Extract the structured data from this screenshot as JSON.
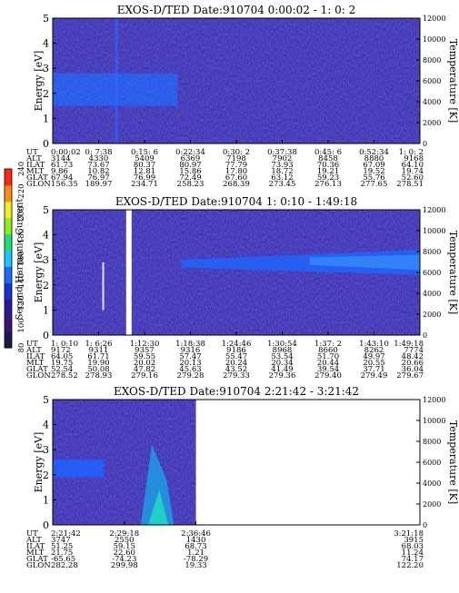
{
  "colorbar": {
    "label": "Second Harmonic Current",
    "ticks": [
      "80",
      "100",
      "120",
      "140",
      "160",
      "180",
      "200",
      "220",
      "240"
    ],
    "colors": [
      "#1a1a4a",
      "#3a1478",
      "#2a1a9a",
      "#1830d8",
      "#1a6cff",
      "#19c8ff",
      "#1ee078",
      "#8cf01e",
      "#f0f01e",
      "#ff8c14",
      "#ff2814"
    ]
  },
  "chart_data": [
    {
      "type": "heatmap",
      "title": "EXOS-D/TED   Date:910704   0:00:02 - 1: 0: 2",
      "ylabel": "Energy [eV]",
      "y2label": "Temperature [K]",
      "ylim": [
        0,
        5
      ],
      "y2lim": [
        0,
        12000
      ],
      "yticks": [
        "0",
        "1",
        "2",
        "3",
        "4",
        "5"
      ],
      "y2ticks": [
        "0",
        "2000",
        "4000",
        "6000",
        "8000",
        "10000",
        "12000"
      ],
      "data_extent": 1.0,
      "rows": [
        {
          "label": "UT",
          "values": [
            "0:00:02",
            "0: 7:38",
            "0:15: 6",
            "0:22:34",
            "0:30: 2",
            "0:37:38",
            "0:45: 6",
            "0:52:34",
            "1: 0: 2"
          ]
        },
        {
          "label": "ALT",
          "values": [
            "3144",
            "4330",
            "5409",
            "6369",
            "7198",
            "7902",
            "8458",
            "8880",
            "9168"
          ]
        },
        {
          "label": "ILAT",
          "values": [
            "61.73",
            "73.67",
            "80.37",
            "80.97",
            "77.79",
            "73.93",
            "70.36",
            "67.09",
            "64.10"
          ]
        },
        {
          "label": "MLT",
          "values": [
            "9.86",
            "10.82",
            "12.81",
            "15.86",
            "17.80",
            "18.72",
            "19.21",
            "19.52",
            "19.74"
          ]
        },
        {
          "label": "GLAT",
          "values": [
            "67.94",
            "76.97",
            "76.99",
            "72.49",
            "67.60",
            "63.12",
            "59.23",
            "55.76",
            "52.60"
          ]
        },
        {
          "label": "GLON",
          "values": [
            "156.35",
            "189.97",
            "234.71",
            "258.23",
            "268.39",
            "273.45",
            "276.13",
            "277.65",
            "278.51"
          ]
        }
      ]
    },
    {
      "type": "heatmap",
      "title": "EXOS-D/TED   Date:910704   1: 0:10 - 1:49:18",
      "ylabel": "Energy [eV]",
      "y2label": "Temperature [K]",
      "ylim": [
        0,
        5
      ],
      "y2lim": [
        0,
        12000
      ],
      "yticks": [
        "0",
        "1",
        "2",
        "3",
        "4",
        "5"
      ],
      "y2ticks": [
        "0",
        "2000",
        "4000",
        "6000",
        "8000",
        "10000",
        "12000"
      ],
      "data_extent": 1.0,
      "rows": [
        {
          "label": "UT",
          "values": [
            "1: 0:10",
            "1: 6:26",
            "1:12:30",
            "1:18:38",
            "1:24:46",
            "1:30:54",
            "1:37: 2",
            "1:43:10",
            "1:49:18"
          ]
        },
        {
          "label": "ALT",
          "values": [
            "9172",
            "9311",
            "9357",
            "9316",
            "9186",
            "8968",
            "8660",
            "8262",
            "7774"
          ]
        },
        {
          "label": "ILAT",
          "values": [
            "64.05",
            "61.71",
            "59.55",
            "57.47",
            "55.47",
            "53.54",
            "51.70",
            "49.97",
            "48.42"
          ]
        },
        {
          "label": "MLT",
          "values": [
            "19.75",
            "19.90",
            "20.02",
            "20.13",
            "20.24",
            "20.34",
            "20.44",
            "20.55",
            "20.66"
          ]
        },
        {
          "label": "GLAT",
          "values": [
            "52.54",
            "50.08",
            "47.82",
            "45.63",
            "43.52",
            "41.49",
            "39.54",
            "37.71",
            "36.04"
          ]
        },
        {
          "label": "GLON",
          "values": [
            "278.52",
            "278.93",
            "279.16",
            "279.28",
            "279.33",
            "279.36",
            "279.40",
            "279.49",
            "279.67"
          ]
        }
      ]
    },
    {
      "type": "heatmap",
      "title": "EXOS-D/TED   Date:910704   2:21:42 - 3:21:42",
      "ylabel": "Energy [eV]",
      "y2label": "Temperature [K]",
      "ylim": [
        0,
        5
      ],
      "y2lim": [
        0,
        12000
      ],
      "yticks": [
        "0",
        "1",
        "2",
        "3",
        "4",
        "5"
      ],
      "y2ticks": [
        "0",
        "2000",
        "4000",
        "6000",
        "8000",
        "10000",
        "12000"
      ],
      "data_extent": 0.39,
      "rows": [
        {
          "label": "UT",
          "values": [
            "2:21:42",
            "2:29:18",
            "2:36:46",
            "3:21:18"
          ]
        },
        {
          "label": "ALT",
          "values": [
            "3747",
            "2550",
            "1430",
            "3915"
          ]
        },
        {
          "label": "ILAT",
          "values": [
            "51.25",
            "59.15",
            "68.73",
            "68.03"
          ]
        },
        {
          "label": "MLT",
          "values": [
            "21.75",
            "22.60",
            "1.21",
            "11.24"
          ]
        },
        {
          "label": "GLAT",
          "values": [
            "-65.65",
            "-74.23",
            "-78.29",
            "74.17"
          ]
        },
        {
          "label": "GLON",
          "values": [
            "282.28",
            "299.98",
            "19.33",
            "122.20"
          ]
        }
      ]
    }
  ]
}
